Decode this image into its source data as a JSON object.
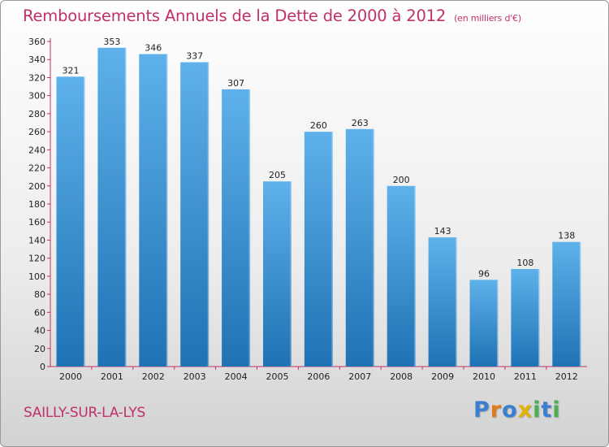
{
  "header": {
    "title": "Remboursements Annuels de la Dette de 2000 à 2012",
    "units": "(en milliers d'€)"
  },
  "footer": {
    "location": "SAILLY-SUR-LA-LYS",
    "brand": "Proxiti"
  },
  "colors": {
    "title": "#c0306b",
    "bar_top": "#5eb1ea",
    "bar_bottom": "#1f72b4",
    "axis": "#c0306b",
    "brand_letters": [
      "#3b7fd0",
      "#e07b1a",
      "#3b7fd0",
      "#e0b400",
      "#4caf50",
      "#3b7fd0",
      "#4caf50"
    ]
  },
  "chart_data": {
    "type": "bar",
    "categories": [
      "2000",
      "2001",
      "2002",
      "2003",
      "2004",
      "2005",
      "2006",
      "2007",
      "2008",
      "2009",
      "2010",
      "2011",
      "2012"
    ],
    "values": [
      321,
      353,
      346,
      337,
      307,
      205,
      260,
      263,
      200,
      143,
      96,
      108,
      138
    ],
    "title": "Remboursements Annuels de la Dette de 2000 à 2012",
    "xlabel": "",
    "ylabel": "",
    "ylim": [
      0,
      360
    ],
    "yticks": [
      0,
      20,
      40,
      60,
      80,
      100,
      120,
      140,
      160,
      180,
      200,
      220,
      240,
      260,
      280,
      300,
      320,
      340,
      360
    ],
    "grid": false,
    "data_labels": true
  }
}
